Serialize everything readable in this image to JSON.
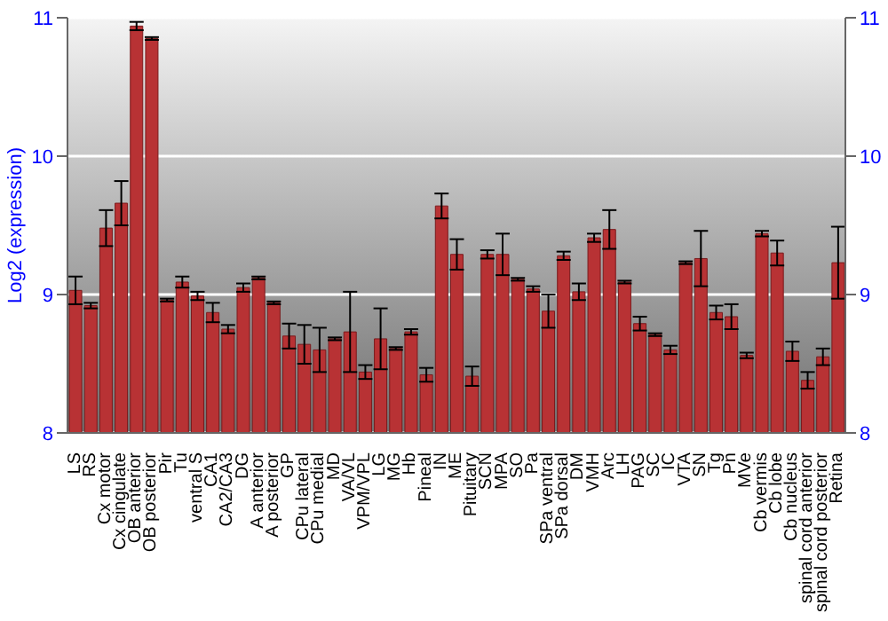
{
  "chart_data": {
    "type": "bar",
    "ylabel": "Log2 (expression)",
    "categories": [
      "LS",
      "RS",
      "Cx motor",
      "Cx cingulate",
      "OB anterior",
      "OB posterior",
      "Pir",
      "Tu",
      "ventral S",
      "CA1",
      "CA2/CA3",
      "DG",
      "A anterior",
      "A posterior",
      "GP",
      "CPu lateral",
      "CPu medial",
      "MD",
      "VA/VL",
      "VPM/VPL",
      "LG",
      "MG",
      "Hb",
      "Pineal",
      "IN",
      "ME",
      "Pituitary",
      "SCN",
      "MPA",
      "SO",
      "Pa",
      "SPa ventral",
      "SPa dorsal",
      "DM",
      "VMH",
      "Arc",
      "LH",
      "PAG",
      "SC",
      "IC",
      "VTA",
      "SN",
      "Tg",
      "Pn",
      "MVe",
      "Cb vermis",
      "Cb lobe",
      "Cb nucleus",
      "spinal cord anterior",
      "spinal cord posterior",
      "Retina"
    ],
    "values": [
      9.03,
      8.92,
      9.48,
      9.66,
      10.94,
      10.85,
      8.96,
      9.09,
      8.99,
      8.87,
      8.75,
      9.05,
      9.12,
      8.94,
      8.7,
      8.64,
      8.6,
      8.68,
      8.73,
      8.44,
      8.68,
      8.61,
      8.73,
      8.42,
      9.64,
      9.29,
      8.41,
      9.29,
      9.29,
      9.11,
      9.04,
      8.88,
      9.28,
      9.02,
      9.41,
      9.47,
      9.09,
      8.79,
      8.71,
      8.6,
      9.23,
      9.26,
      8.87,
      8.84,
      8.56,
      9.44,
      9.3,
      8.59,
      8.38,
      8.55,
      9.23
    ],
    "errors": [
      0.1,
      0.02,
      0.13,
      0.16,
      0.03,
      0.01,
      0.01,
      0.04,
      0.03,
      0.07,
      0.03,
      0.03,
      0.01,
      0.01,
      0.09,
      0.14,
      0.16,
      0.01,
      0.29,
      0.05,
      0.22,
      0.01,
      0.02,
      0.05,
      0.09,
      0.11,
      0.07,
      0.03,
      0.15,
      0.01,
      0.02,
      0.12,
      0.03,
      0.06,
      0.03,
      0.14,
      0.01,
      0.05,
      0.01,
      0.03,
      0.01,
      0.2,
      0.05,
      0.09,
      0.02,
      0.02,
      0.09,
      0.07,
      0.06,
      0.06,
      0.26
    ],
    "color": "#b83234",
    "ylim": [
      8,
      11
    ],
    "yticks": [
      8,
      9,
      10,
      11
    ],
    "y2lim": [
      8,
      11
    ],
    "y2ticks": [
      8,
      9,
      10,
      11
    ],
    "grid": "y"
  }
}
